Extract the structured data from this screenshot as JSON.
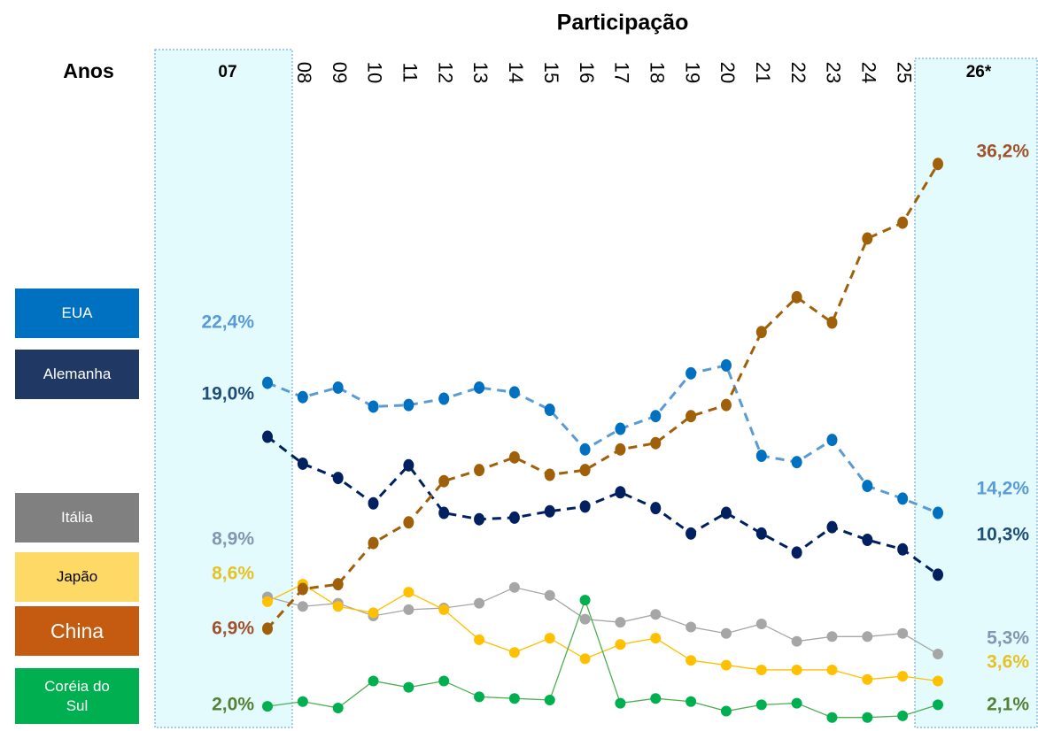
{
  "chart_data": {
    "type": "line",
    "title": "Participação",
    "x_label": "Anos",
    "categories": [
      "07",
      "08",
      "09",
      "10",
      "11",
      "12",
      "13",
      "14",
      "15",
      "16",
      "17",
      "18",
      "19",
      "20",
      "21",
      "22",
      "23",
      "24",
      "25",
      "26*"
    ],
    "series": [
      {
        "name": "EUA",
        "color": "#5b9bd5",
        "marker_color": "#0070c0",
        "legend_color": "#0070c0",
        "label_color": "#5b9bd5",
        "dashed": true,
        "values": [
          22.4,
          21.5,
          22.1,
          20.9,
          21.0,
          21.4,
          22.1,
          21.8,
          20.7,
          18.2,
          19.5,
          20.3,
          23.0,
          23.5,
          17.8,
          17.4,
          18.8,
          15.9,
          15.1,
          14.2
        ],
        "value_labels": [
          "22,4%",
          null,
          null,
          null,
          null,
          null,
          null,
          null,
          null,
          null,
          null,
          null,
          null,
          null,
          null,
          null,
          null,
          null,
          null,
          "14,2%"
        ]
      },
      {
        "name": "Alemanha",
        "color": "#002060",
        "marker_color": "#002060",
        "legend_color": "#1f3864",
        "label_color": "#1f4e79",
        "dashed": true,
        "values": [
          19.0,
          17.3,
          16.4,
          14.8,
          17.2,
          14.2,
          13.8,
          13.9,
          14.3,
          14.6,
          15.5,
          14.5,
          12.9,
          14.2,
          12.9,
          11.7,
          13.3,
          12.5,
          11.9,
          10.3
        ],
        "value_labels": [
          "19,0%",
          null,
          null,
          null,
          null,
          null,
          null,
          null,
          null,
          null,
          null,
          null,
          null,
          null,
          null,
          null,
          null,
          null,
          null,
          "10,3%"
        ]
      },
      {
        "name": "Itália",
        "color": "#a6a6a6",
        "marker_color": "#a6a6a6",
        "legend_color": "#808080",
        "label_color": "#8497b0",
        "dashed": false,
        "values": [
          8.9,
          8.3,
          8.5,
          7.7,
          8.1,
          8.2,
          8.5,
          9.5,
          9.0,
          7.5,
          7.3,
          7.8,
          7.0,
          6.6,
          7.2,
          6.1,
          6.4,
          6.4,
          6.6,
          5.3
        ],
        "value_labels": [
          "8,9%",
          null,
          null,
          null,
          null,
          null,
          null,
          null,
          null,
          null,
          null,
          null,
          null,
          null,
          null,
          null,
          null,
          null,
          null,
          "5,3%"
        ]
      },
      {
        "name": "Japão",
        "color": "#ffc000",
        "marker_color": "#ffc000",
        "legend_color": "#ffd966",
        "label_color": "#e6c229",
        "dashed": false,
        "legend_text_color": "#000",
        "values": [
          8.6,
          9.7,
          8.3,
          7.9,
          9.2,
          8.1,
          6.2,
          5.4,
          6.3,
          5.0,
          5.9,
          6.3,
          4.9,
          4.6,
          4.3,
          4.3,
          4.3,
          3.7,
          3.9,
          3.6
        ],
        "value_labels": [
          "8,6%",
          null,
          null,
          null,
          null,
          null,
          null,
          null,
          null,
          null,
          null,
          null,
          null,
          null,
          null,
          null,
          null,
          null,
          null,
          "3,6%"
        ]
      },
      {
        "name": "China",
        "color": "#a0600a",
        "marker_color": "#a0600a",
        "legend_color": "#c55a11",
        "label_color": "#a0522d",
        "dashed": true,
        "values": [
          6.9,
          9.4,
          9.7,
          12.3,
          13.6,
          16.2,
          16.9,
          17.7,
          16.6,
          16.9,
          18.2,
          18.6,
          20.3,
          21.0,
          25.6,
          27.8,
          26.2,
          31.5,
          32.5,
          36.2
        ],
        "value_labels": [
          "6,9%",
          null,
          null,
          null,
          null,
          null,
          null,
          null,
          null,
          null,
          null,
          null,
          null,
          null,
          null,
          null,
          null,
          null,
          null,
          "36,2%"
        ]
      },
      {
        "name": "Coréia do Sul",
        "color": "#4caf50",
        "marker_color": "#00b050",
        "legend_color": "#00b050",
        "label_color": "#548235",
        "dashed": false,
        "values": [
          2.0,
          2.3,
          1.9,
          3.6,
          3.2,
          3.6,
          2.6,
          2.5,
          2.4,
          8.7,
          2.2,
          2.5,
          2.3,
          1.7,
          2.1,
          2.2,
          1.3,
          1.3,
          1.4,
          2.1
        ],
        "value_labels": [
          "2,0%",
          null,
          null,
          null,
          null,
          null,
          null,
          null,
          null,
          null,
          null,
          null,
          null,
          null,
          null,
          null,
          null,
          null,
          null,
          "2,1%"
        ]
      }
    ]
  }
}
